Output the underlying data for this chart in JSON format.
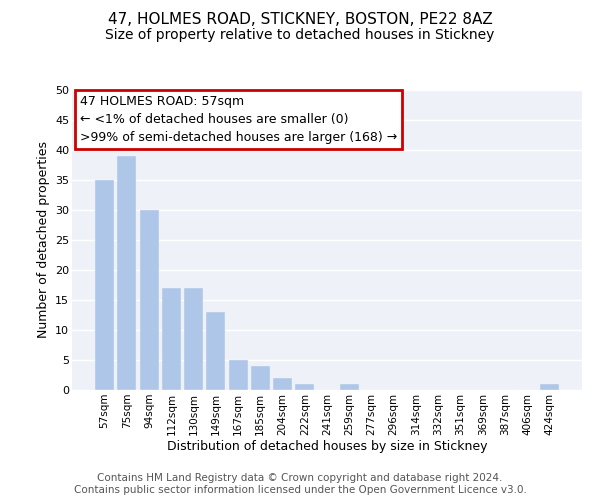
{
  "title": "47, HOLMES ROAD, STICKNEY, BOSTON, PE22 8AZ",
  "subtitle": "Size of property relative to detached houses in Stickney",
  "xlabel": "Distribution of detached houses by size in Stickney",
  "ylabel": "Number of detached properties",
  "bar_labels": [
    "57sqm",
    "75sqm",
    "94sqm",
    "112sqm",
    "130sqm",
    "149sqm",
    "167sqm",
    "185sqm",
    "204sqm",
    "222sqm",
    "241sqm",
    "259sqm",
    "277sqm",
    "296sqm",
    "314sqm",
    "332sqm",
    "351sqm",
    "369sqm",
    "387sqm",
    "406sqm",
    "424sqm"
  ],
  "bar_values": [
    35,
    39,
    30,
    17,
    17,
    13,
    5,
    4,
    2,
    1,
    0,
    1,
    0,
    0,
    0,
    0,
    0,
    0,
    0,
    0,
    1
  ],
  "bar_color": "#aec6e8",
  "ylim": [
    0,
    50
  ],
  "yticks": [
    0,
    5,
    10,
    15,
    20,
    25,
    30,
    35,
    40,
    45,
    50
  ],
  "ann_line1": "47 HOLMES ROAD: 57sqm",
  "ann_line2": "← <1% of detached houses are smaller (0)",
  "ann_line3": ">99% of semi-detached houses are larger (168) →",
  "ann_box_edge": "#cc0000",
  "ann_box_face": "#ffffff",
  "footer_line1": "Contains HM Land Registry data © Crown copyright and database right 2024.",
  "footer_line2": "Contains public sector information licensed under the Open Government Licence v3.0.",
  "bg_color": "#eef2f8",
  "title_fontsize": 11,
  "subtitle_fontsize": 10,
  "ann_fontsize": 9,
  "xlabel_fontsize": 9,
  "ylabel_fontsize": 9,
  "footer_fontsize": 7.5,
  "tick_fontsize": 7.5
}
